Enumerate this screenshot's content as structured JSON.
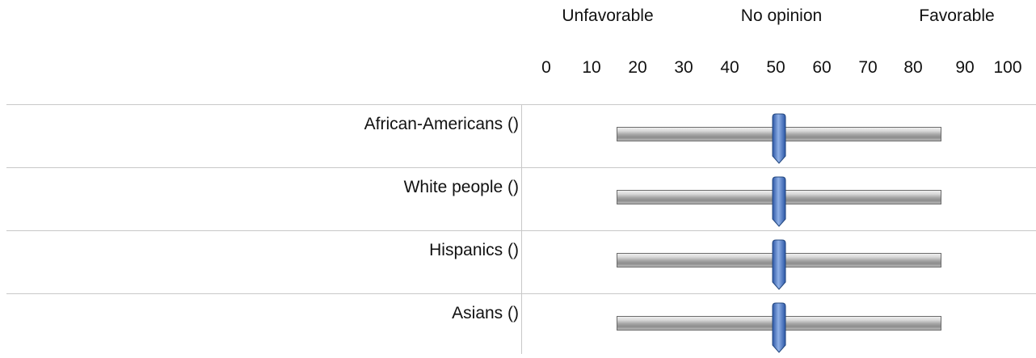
{
  "scale": {
    "anchors": [
      "Unfavorable",
      "No opinion",
      "Favorable"
    ],
    "ticks": [
      "0",
      "10",
      "20",
      "30",
      "40",
      "50",
      "60",
      "70",
      "80",
      "90",
      "100"
    ],
    "min": 0,
    "max": 100
  },
  "rows": [
    {
      "label": "African-Americans ()",
      "value": 50
    },
    {
      "label": "White people ()",
      "value": 50
    },
    {
      "label": "Hispanics ()",
      "value": 50
    },
    {
      "label": "Asians ()",
      "value": 50
    }
  ],
  "colors": {
    "thumb": "#4a78c8",
    "thumb_dark": "#2b56a6",
    "track": "#9a9a9a",
    "divider": "#c8c8c8"
  }
}
